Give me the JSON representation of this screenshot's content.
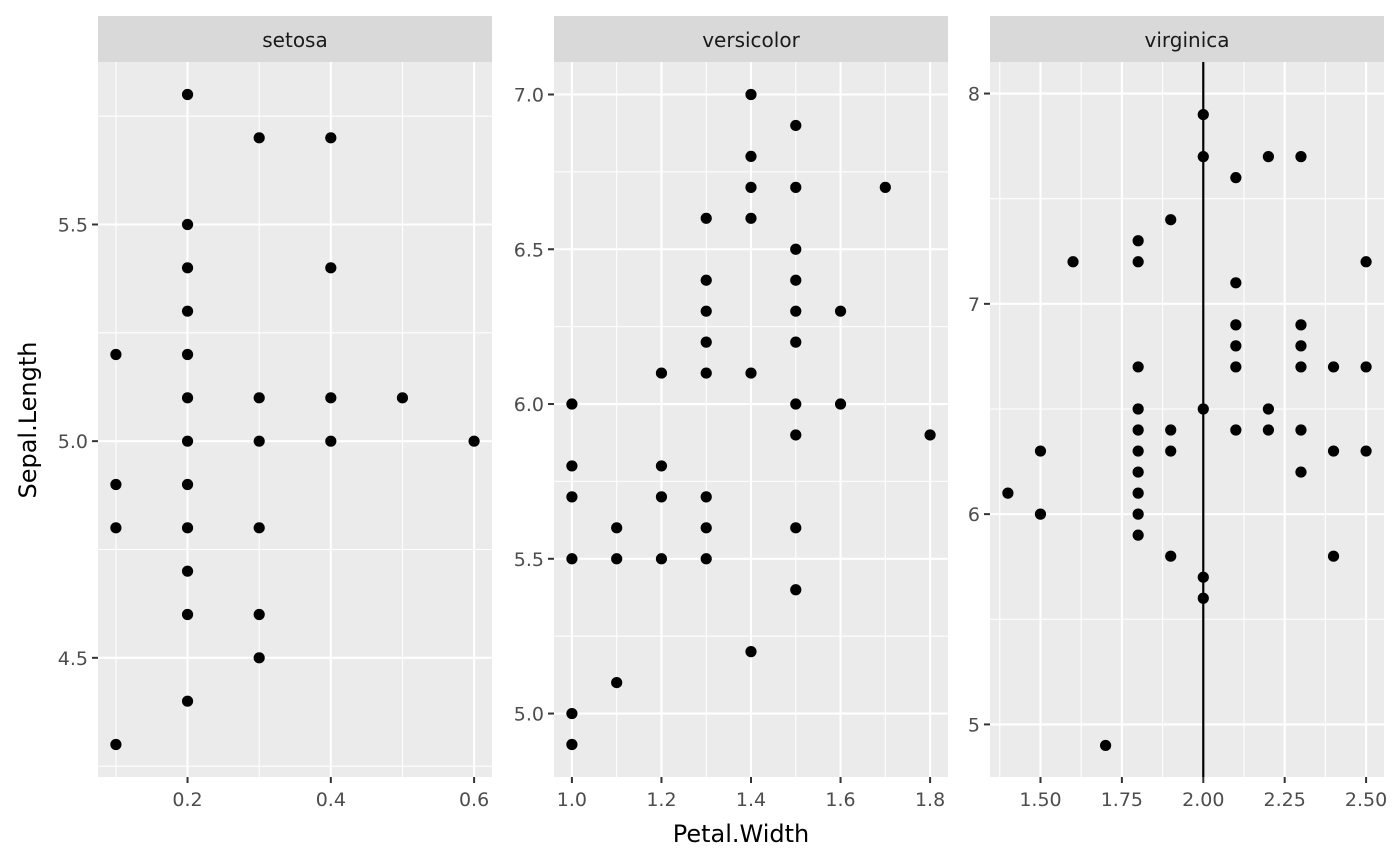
{
  "chart_data": {
    "type": "scatter",
    "xlabel": "Petal.Width",
    "ylabel": "Sepal.Length",
    "point_color": "#000000",
    "panel_background": "#ebebeb",
    "strip_background": "#d9d9d9",
    "grid": true,
    "legend": "none",
    "panels": [
      {
        "strip": "setosa",
        "xlim": [
          0.075,
          0.625
        ],
        "ylim": [
          4.225,
          5.875
        ],
        "xticks": [
          0.2,
          0.4,
          0.6
        ],
        "xtick_labels": [
          "0.2",
          "0.4",
          "0.6"
        ],
        "yticks": [
          4.5,
          5.0,
          5.5
        ],
        "ytick_labels": [
          "4.5",
          "5.0",
          "5.5"
        ],
        "points": [
          [
            0.2,
            5.8
          ],
          [
            0.3,
            5.7
          ],
          [
            0.4,
            5.7
          ],
          [
            0.2,
            5.5
          ],
          [
            0.2,
            5.4
          ],
          [
            0.4,
            5.4
          ],
          [
            0.2,
            5.3
          ],
          [
            0.1,
            5.2
          ],
          [
            0.2,
            5.2
          ],
          [
            0.2,
            5.1
          ],
          [
            0.3,
            5.1
          ],
          [
            0.4,
            5.1
          ],
          [
            0.5,
            5.1
          ],
          [
            0.2,
            5.0
          ],
          [
            0.3,
            5.0
          ],
          [
            0.4,
            5.0
          ],
          [
            0.6,
            5.0
          ],
          [
            0.1,
            4.9
          ],
          [
            0.2,
            4.9
          ],
          [
            0.1,
            4.8
          ],
          [
            0.2,
            4.8
          ],
          [
            0.3,
            4.8
          ],
          [
            0.2,
            4.7
          ],
          [
            0.2,
            4.6
          ],
          [
            0.3,
            4.6
          ],
          [
            0.3,
            4.5
          ],
          [
            0.2,
            4.4
          ],
          [
            0.1,
            4.3
          ]
        ]
      },
      {
        "strip": "versicolor",
        "xlim": [
          0.96,
          1.84
        ],
        "ylim": [
          4.795,
          7.105
        ],
        "xticks": [
          1.0,
          1.2,
          1.4,
          1.6,
          1.8
        ],
        "xtick_labels": [
          "1.0",
          "1.2",
          "1.4",
          "1.6",
          "1.8"
        ],
        "yticks": [
          5.0,
          5.5,
          6.0,
          6.5,
          7.0
        ],
        "ytick_labels": [
          "5.0",
          "5.5",
          "6.0",
          "6.5",
          "7.0"
        ],
        "points": [
          [
            1.4,
            7.0
          ],
          [
            1.5,
            6.9
          ],
          [
            1.4,
            6.8
          ],
          [
            1.4,
            6.7
          ],
          [
            1.5,
            6.7
          ],
          [
            1.7,
            6.7
          ],
          [
            1.3,
            6.6
          ],
          [
            1.4,
            6.6
          ],
          [
            1.5,
            6.5
          ],
          [
            1.3,
            6.4
          ],
          [
            1.5,
            6.4
          ],
          [
            1.3,
            6.3
          ],
          [
            1.5,
            6.3
          ],
          [
            1.6,
            6.3
          ],
          [
            1.3,
            6.2
          ],
          [
            1.5,
            6.2
          ],
          [
            1.2,
            6.1
          ],
          [
            1.3,
            6.1
          ],
          [
            1.4,
            6.1
          ],
          [
            1.0,
            6.0
          ],
          [
            1.5,
            6.0
          ],
          [
            1.6,
            6.0
          ],
          [
            1.5,
            5.9
          ],
          [
            1.8,
            5.9
          ],
          [
            1.0,
            5.8
          ],
          [
            1.2,
            5.8
          ],
          [
            1.0,
            5.7
          ],
          [
            1.2,
            5.7
          ],
          [
            1.3,
            5.7
          ],
          [
            1.1,
            5.6
          ],
          [
            1.3,
            5.6
          ],
          [
            1.5,
            5.6
          ],
          [
            1.0,
            5.5
          ],
          [
            1.1,
            5.5
          ],
          [
            1.2,
            5.5
          ],
          [
            1.3,
            5.5
          ],
          [
            1.5,
            5.4
          ],
          [
            1.4,
            5.2
          ],
          [
            1.1,
            5.1
          ],
          [
            1.0,
            5.0
          ],
          [
            1.0,
            4.9
          ]
        ]
      },
      {
        "strip": "virginica",
        "xlim": [
          1.345,
          2.555
        ],
        "ylim": [
          4.75,
          8.15
        ],
        "xticks": [
          1.5,
          1.75,
          2.0,
          2.25,
          2.5
        ],
        "xtick_labels": [
          "1.50",
          "1.75",
          "2.00",
          "2.25",
          "2.50"
        ],
        "yticks": [
          5,
          6,
          7,
          8
        ],
        "ytick_labels": [
          "5",
          "6",
          "7",
          "8"
        ],
        "vline_x": 2.0,
        "points": [
          [
            2.0,
            7.9
          ],
          [
            2.0,
            7.7
          ],
          [
            2.2,
            7.7
          ],
          [
            2.3,
            7.7
          ],
          [
            2.1,
            7.6
          ],
          [
            1.9,
            7.4
          ],
          [
            1.8,
            7.3
          ],
          [
            1.6,
            7.2
          ],
          [
            1.8,
            7.2
          ],
          [
            2.5,
            7.2
          ],
          [
            2.1,
            7.1
          ],
          [
            2.1,
            6.9
          ],
          [
            2.3,
            6.9
          ],
          [
            2.1,
            6.8
          ],
          [
            2.3,
            6.8
          ],
          [
            1.8,
            6.7
          ],
          [
            2.1,
            6.7
          ],
          [
            2.3,
            6.7
          ],
          [
            2.4,
            6.7
          ],
          [
            2.5,
            6.7
          ],
          [
            1.8,
            6.5
          ],
          [
            2.0,
            6.5
          ],
          [
            2.2,
            6.5
          ],
          [
            1.8,
            6.4
          ],
          [
            1.9,
            6.4
          ],
          [
            2.1,
            6.4
          ],
          [
            2.2,
            6.4
          ],
          [
            2.3,
            6.4
          ],
          [
            1.5,
            6.3
          ],
          [
            1.8,
            6.3
          ],
          [
            1.9,
            6.3
          ],
          [
            2.4,
            6.3
          ],
          [
            2.5,
            6.3
          ],
          [
            1.8,
            6.2
          ],
          [
            2.3,
            6.2
          ],
          [
            1.4,
            6.1
          ],
          [
            1.8,
            6.1
          ],
          [
            1.5,
            6.0
          ],
          [
            1.8,
            6.0
          ],
          [
            1.8,
            5.9
          ],
          [
            1.9,
            5.8
          ],
          [
            2.4,
            5.8
          ],
          [
            2.0,
            5.7
          ],
          [
            2.0,
            5.6
          ],
          [
            1.7,
            4.9
          ]
        ]
      }
    ]
  }
}
